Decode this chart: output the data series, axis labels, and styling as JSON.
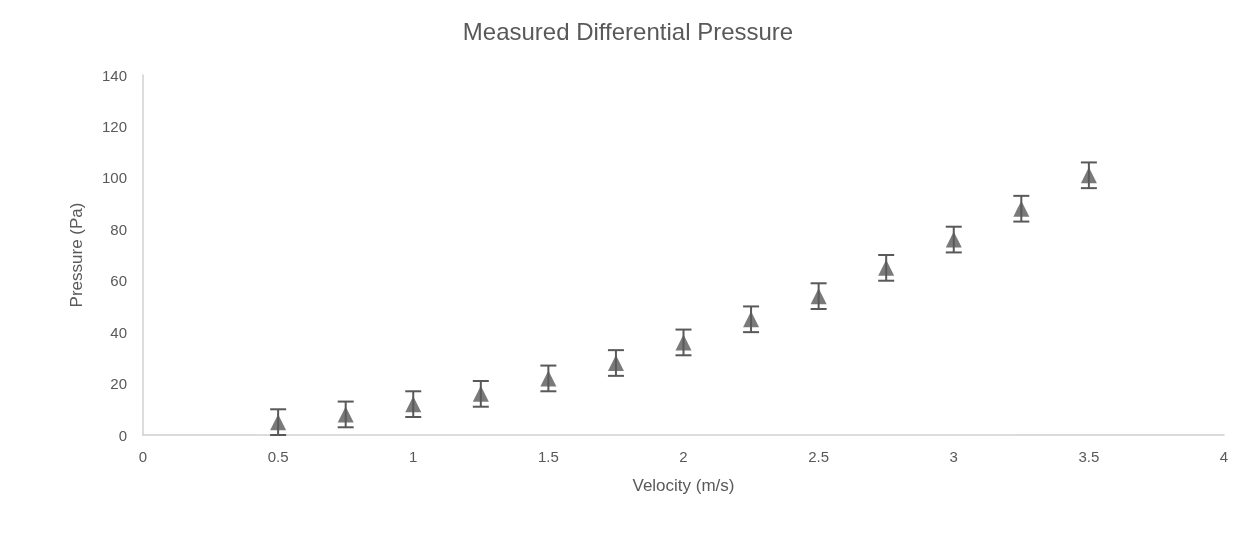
{
  "chart_data": {
    "type": "scatter",
    "title": "Measured Differential Pressure",
    "xlabel": "Velocity (m/s)",
    "ylabel": "Pressure (Pa)",
    "x": [
      0.5,
      0.75,
      1,
      1.25,
      1.5,
      1.75,
      2,
      2.25,
      2.5,
      2.75,
      3,
      3.25,
      3.5
    ],
    "series": [
      {
        "color": "#595959",
        "values": [
          5,
          8,
          12,
          16,
          22,
          28,
          36,
          45,
          54,
          65,
          76,
          88,
          101
        ],
        "errors": [
          5,
          5,
          5,
          5,
          5,
          5,
          5,
          5,
          5,
          5,
          5,
          5,
          5
        ]
      }
    ],
    "xlim": [
      0,
      4
    ],
    "xticks": [
      0,
      0.5,
      1,
      1.5,
      2,
      2.5,
      3,
      3.5,
      4
    ],
    "ylim": [
      0,
      140
    ],
    "yticks": [
      0,
      20,
      40,
      60,
      80,
      100,
      120,
      140
    ],
    "grid": false,
    "marker": "triangle"
  }
}
